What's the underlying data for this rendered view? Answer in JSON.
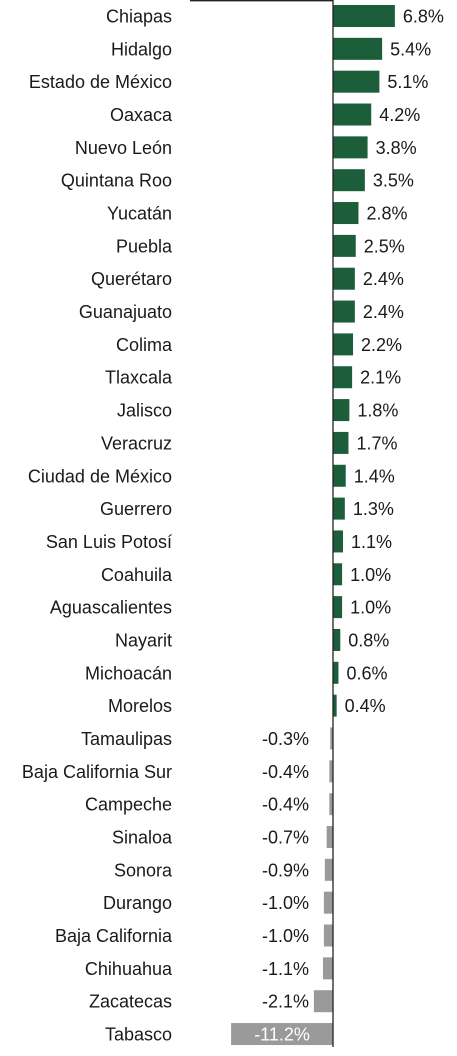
{
  "chart_data": {
    "type": "bar",
    "orientation": "horizontal",
    "title": "",
    "xlabel": "",
    "ylabel": "",
    "grid": false,
    "legend": "none",
    "xlim": [
      -11.5,
      8.0
    ],
    "categories": [
      "Chiapas",
      "Hidalgo",
      "Estado de México",
      "Oaxaca",
      "Nuevo León",
      "Quintana Roo",
      "Yucatán",
      "Puebla",
      "Querétaro",
      "Guanajuato",
      "Colima",
      "Tlaxcala",
      "Jalisco",
      "Veracruz",
      "Ciudad de México",
      "Guerrero",
      "San Luis Potosí",
      "Coahuila",
      "Aguascalientes",
      "Nayarit",
      "Michoacán",
      "Morelos",
      "Tamaulipas",
      "Baja California Sur",
      "Campeche",
      "Sinaloa",
      "Sonora",
      "Durango",
      "Baja California",
      "Chihuahua",
      "Zacatecas",
      "Tabasco"
    ],
    "values": [
      6.8,
      5.4,
      5.1,
      4.2,
      3.8,
      3.5,
      2.8,
      2.5,
      2.4,
      2.4,
      2.2,
      2.1,
      1.8,
      1.7,
      1.4,
      1.3,
      1.1,
      1.0,
      1.0,
      0.8,
      0.6,
      0.4,
      -0.3,
      -0.4,
      -0.4,
      -0.7,
      -0.9,
      -1.0,
      -1.0,
      -1.1,
      -2.1,
      -11.2
    ],
    "data_labels": [
      "6.8%",
      "5.4%",
      "5.1%",
      "4.2%",
      "3.8%",
      "3.5%",
      "2.8%",
      "2.5%",
      "2.4%",
      "2.4%",
      "2.2%",
      "2.1%",
      "1.8%",
      "1.7%",
      "1.4%",
      "1.3%",
      "1.1%",
      "1.0%",
      "1.0%",
      "0.8%",
      "0.6%",
      "0.4%",
      "-0.3%",
      "-0.4%",
      "-0.4%",
      "-0.7%",
      "-0.9%",
      "-1.0%",
      "-1.0%",
      "-1.1%",
      "-2.1%",
      "-11.2%"
    ],
    "colors": {
      "positive": "#1d5e3a",
      "negative": "#9a9a9a",
      "axis": "#222222",
      "text": "#1a1a1a",
      "inside_label": "#ffffff"
    }
  }
}
